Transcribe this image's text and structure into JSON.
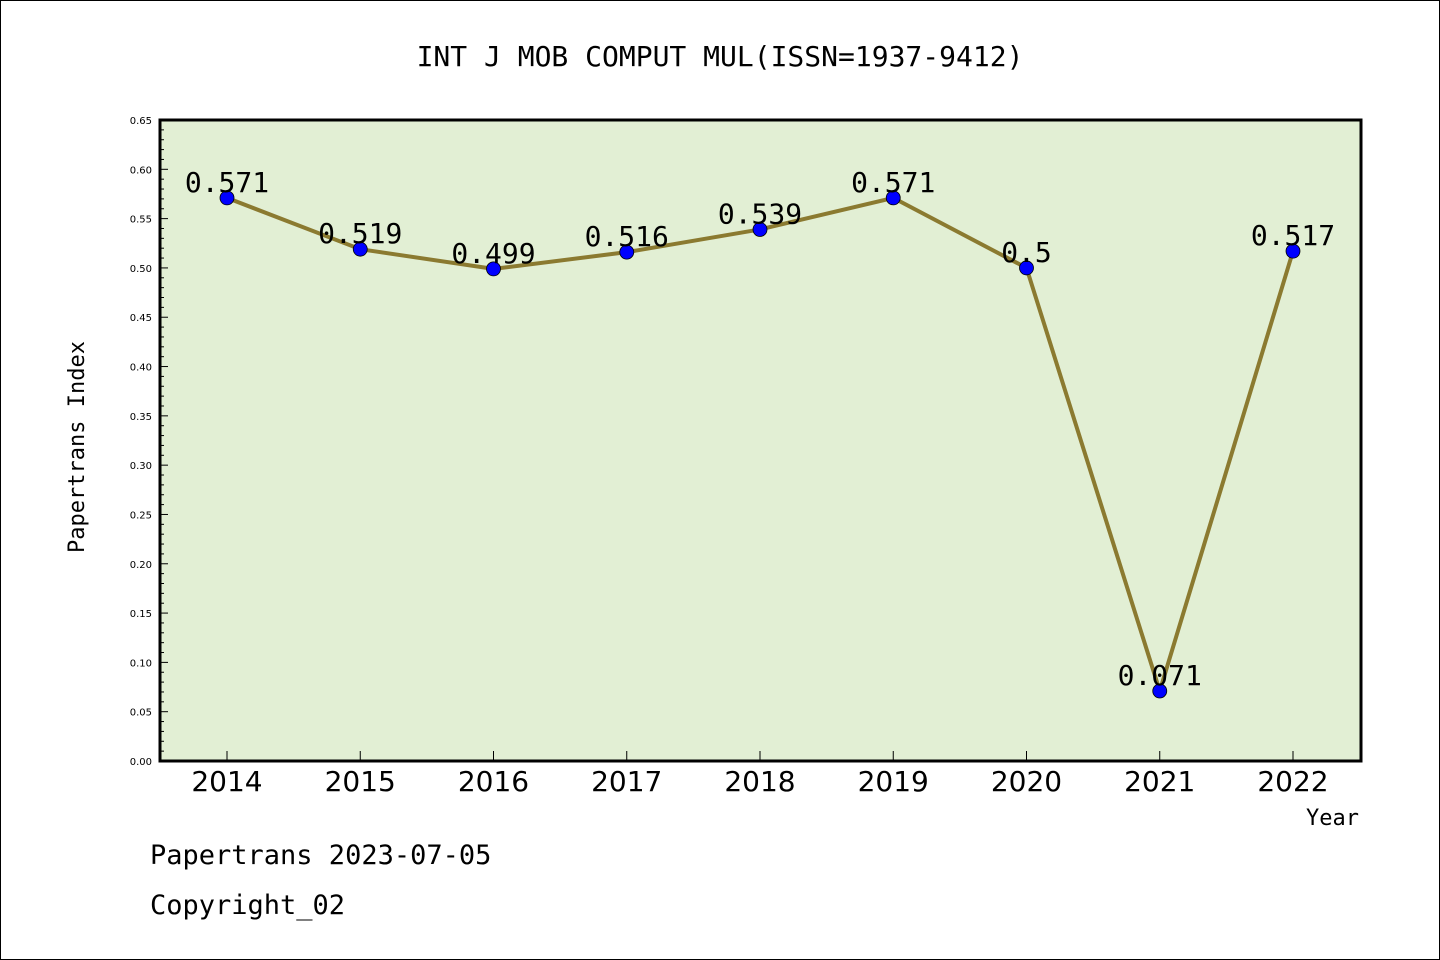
{
  "chart_data": {
    "type": "line",
    "title": "INT J MOB COMPUT MUL(ISSN=1937-9412)",
    "xlabel": "Year",
    "ylabel": "Papertrans Index",
    "categories": [
      "2014",
      "2015",
      "2016",
      "2017",
      "2018",
      "2019",
      "2020",
      "2021",
      "2022"
    ],
    "values": [
      0.571,
      0.519,
      0.499,
      0.516,
      0.539,
      0.571,
      0.5,
      0.071,
      0.517
    ],
    "data_labels": [
      "0.571",
      "0.519",
      "0.499",
      "0.516",
      "0.539",
      "0.571",
      "0.5",
      "0.071",
      "0.517"
    ],
    "ylim": [
      0,
      0.65
    ],
    "yticks": [
      "0.00",
      "0.05",
      "0.10",
      "0.15",
      "0.20",
      "0.25",
      "0.30",
      "0.35",
      "0.40",
      "0.45",
      "0.50",
      "0.55",
      "0.60",
      "0.65"
    ],
    "grid": false,
    "legend": "none",
    "colors": {
      "plot_background": "#e2efd4",
      "line": "#8b7a30",
      "marker": "#0000ff"
    }
  },
  "footer": {
    "line1": "Papertrans 2023-07-05",
    "line2": "Copyright_02"
  }
}
